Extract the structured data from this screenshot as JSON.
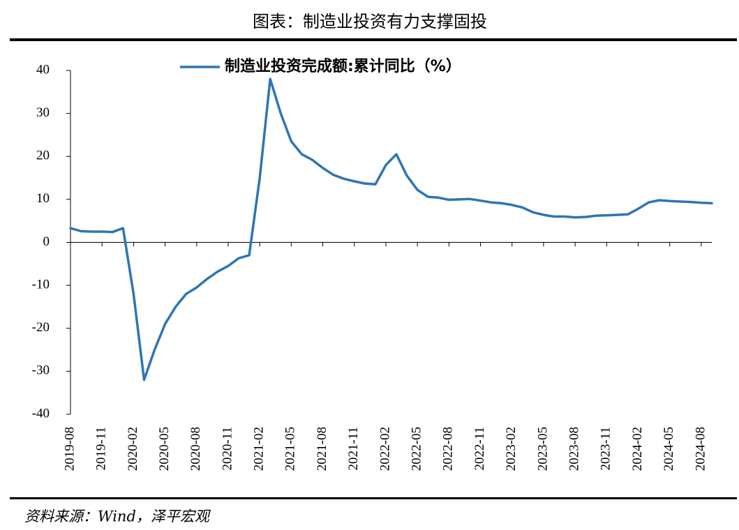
{
  "chart_data": {
    "type": "line",
    "title": "图表：制造业投资有力支撑固投",
    "source": "资料来源：Wind，泽平宏观",
    "legend": "top",
    "categories": [
      "2019-08",
      null,
      null,
      "2019-11",
      null,
      null,
      "2020-02",
      null,
      null,
      "2020-05",
      null,
      null,
      "2020-08",
      null,
      null,
      "2020-11",
      null,
      null,
      "2021-02",
      null,
      null,
      "2021-05",
      null,
      null,
      "2021-08",
      null,
      null,
      "2021-11",
      null,
      null,
      "2022-02",
      null,
      null,
      "2022-05",
      null,
      null,
      "2022-08",
      null,
      null,
      "2022-11",
      null,
      null,
      "2023-02",
      null,
      null,
      "2023-05",
      null,
      null,
      "2023-08",
      null,
      null,
      "2023-11",
      null,
      null,
      "2024-02",
      null,
      null,
      "2024-05",
      null,
      null,
      "2024-08",
      null
    ],
    "series": [
      {
        "name": "制造业投资完成额:累计同比（%）",
        "color": "#2e75b6",
        "values": [
          3.3,
          2.6,
          2.5,
          2.5,
          2.4,
          3.3,
          -12,
          -32,
          -25,
          -19,
          -15,
          -12,
          -10.5,
          -8.5,
          -6.8,
          -5.5,
          -3.7,
          -3.0,
          15,
          38,
          30,
          23.5,
          20.5,
          19.2,
          17.3,
          15.7,
          14.8,
          14.2,
          13.7,
          13.5,
          18,
          20.5,
          15.5,
          12.2,
          10.6,
          10.4,
          9.9,
          10.0,
          10.1,
          9.7,
          9.3,
          9.1,
          8.7,
          8.1,
          7.0,
          6.4,
          6.0,
          6.0,
          5.8,
          5.9,
          6.2,
          6.3,
          6.4,
          6.5,
          7.8,
          9.3,
          9.8,
          9.6,
          9.5,
          9.4,
          9.2,
          9.1
        ]
      }
    ],
    "ylim": [
      -40,
      40
    ],
    "yticks": [
      -40,
      -30,
      -20,
      -10,
      0,
      10,
      20,
      30,
      40
    ]
  }
}
